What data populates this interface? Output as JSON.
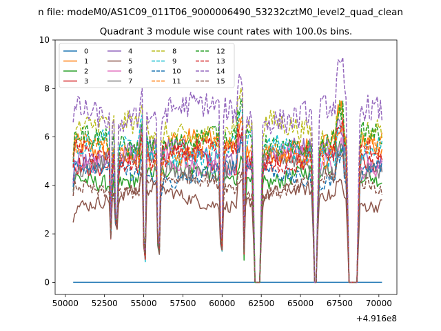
{
  "chart_data": {
    "type": "line",
    "suptitle": "n file: modeM0/AS1C09_011T06_9000006490_53232cztM0_level2_quad_clean",
    "title": "Quadrant 3 module wise count rates with 100.0s bins.",
    "xlabel": "",
    "ylabel": "",
    "x_offset_label": "+4.916e8",
    "xlim": [
      49350,
      71150
    ],
    "ylim": [
      -0.5,
      10
    ],
    "xticks": [
      50000,
      52500,
      55000,
      57500,
      60000,
      62500,
      65000,
      67500,
      70000
    ],
    "yticks": [
      0,
      2,
      4,
      6,
      8,
      10
    ],
    "x_start": 50500,
    "x_end": 70200,
    "x_step": 100,
    "gaps": [
      [
        62100,
        62450
      ],
      [
        65850,
        66050
      ],
      [
        68050,
        68650
      ]
    ],
    "dips": [
      [
        52900,
        1.6
      ],
      [
        53250,
        2.3
      ],
      [
        55050,
        1.0
      ],
      [
        55950,
        1.3
      ],
      [
        59950,
        1.5
      ],
      [
        61400,
        0.6
      ]
    ],
    "legend": {
      "loc": "upper left",
      "ncol": 4
    },
    "series": [
      {
        "name": "0",
        "color": "#1f77b4",
        "style": "solid",
        "level": 0.0
      },
      {
        "name": "1",
        "color": "#ff7f0e",
        "style": "solid",
        "level": 5.6
      },
      {
        "name": "2",
        "color": "#2ca02c",
        "style": "solid",
        "level": 4.4
      },
      {
        "name": "3",
        "color": "#d62728",
        "style": "solid",
        "level": 5.1
      },
      {
        "name": "4",
        "color": "#9467bd",
        "style": "solid",
        "level": 5.3
      },
      {
        "name": "5",
        "color": "#8c564b",
        "style": "solid",
        "level": 3.5
      },
      {
        "name": "6",
        "color": "#e377c2",
        "style": "solid",
        "level": 5.0
      },
      {
        "name": "7",
        "color": "#7f7f7f",
        "style": "solid",
        "level": 4.8
      },
      {
        "name": "8",
        "color": "#bcbd22",
        "style": "dashed",
        "level": 6.3
      },
      {
        "name": "9",
        "color": "#17becf",
        "style": "dashed",
        "level": 5.5
      },
      {
        "name": "10",
        "color": "#1f77b4",
        "style": "dashed",
        "level": 4.5
      },
      {
        "name": "11",
        "color": "#ff7f0e",
        "style": "dashed",
        "level": 5.4
      },
      {
        "name": "12",
        "color": "#2ca02c",
        "style": "dashed",
        "level": 5.8
      },
      {
        "name": "13",
        "color": "#d62728",
        "style": "dashed",
        "level": 5.2
      },
      {
        "name": "14",
        "color": "#9467bd",
        "style": "dashed",
        "level": 7.0
      },
      {
        "name": "15",
        "color": "#8c564b",
        "style": "dashed",
        "level": 4.0
      }
    ]
  }
}
